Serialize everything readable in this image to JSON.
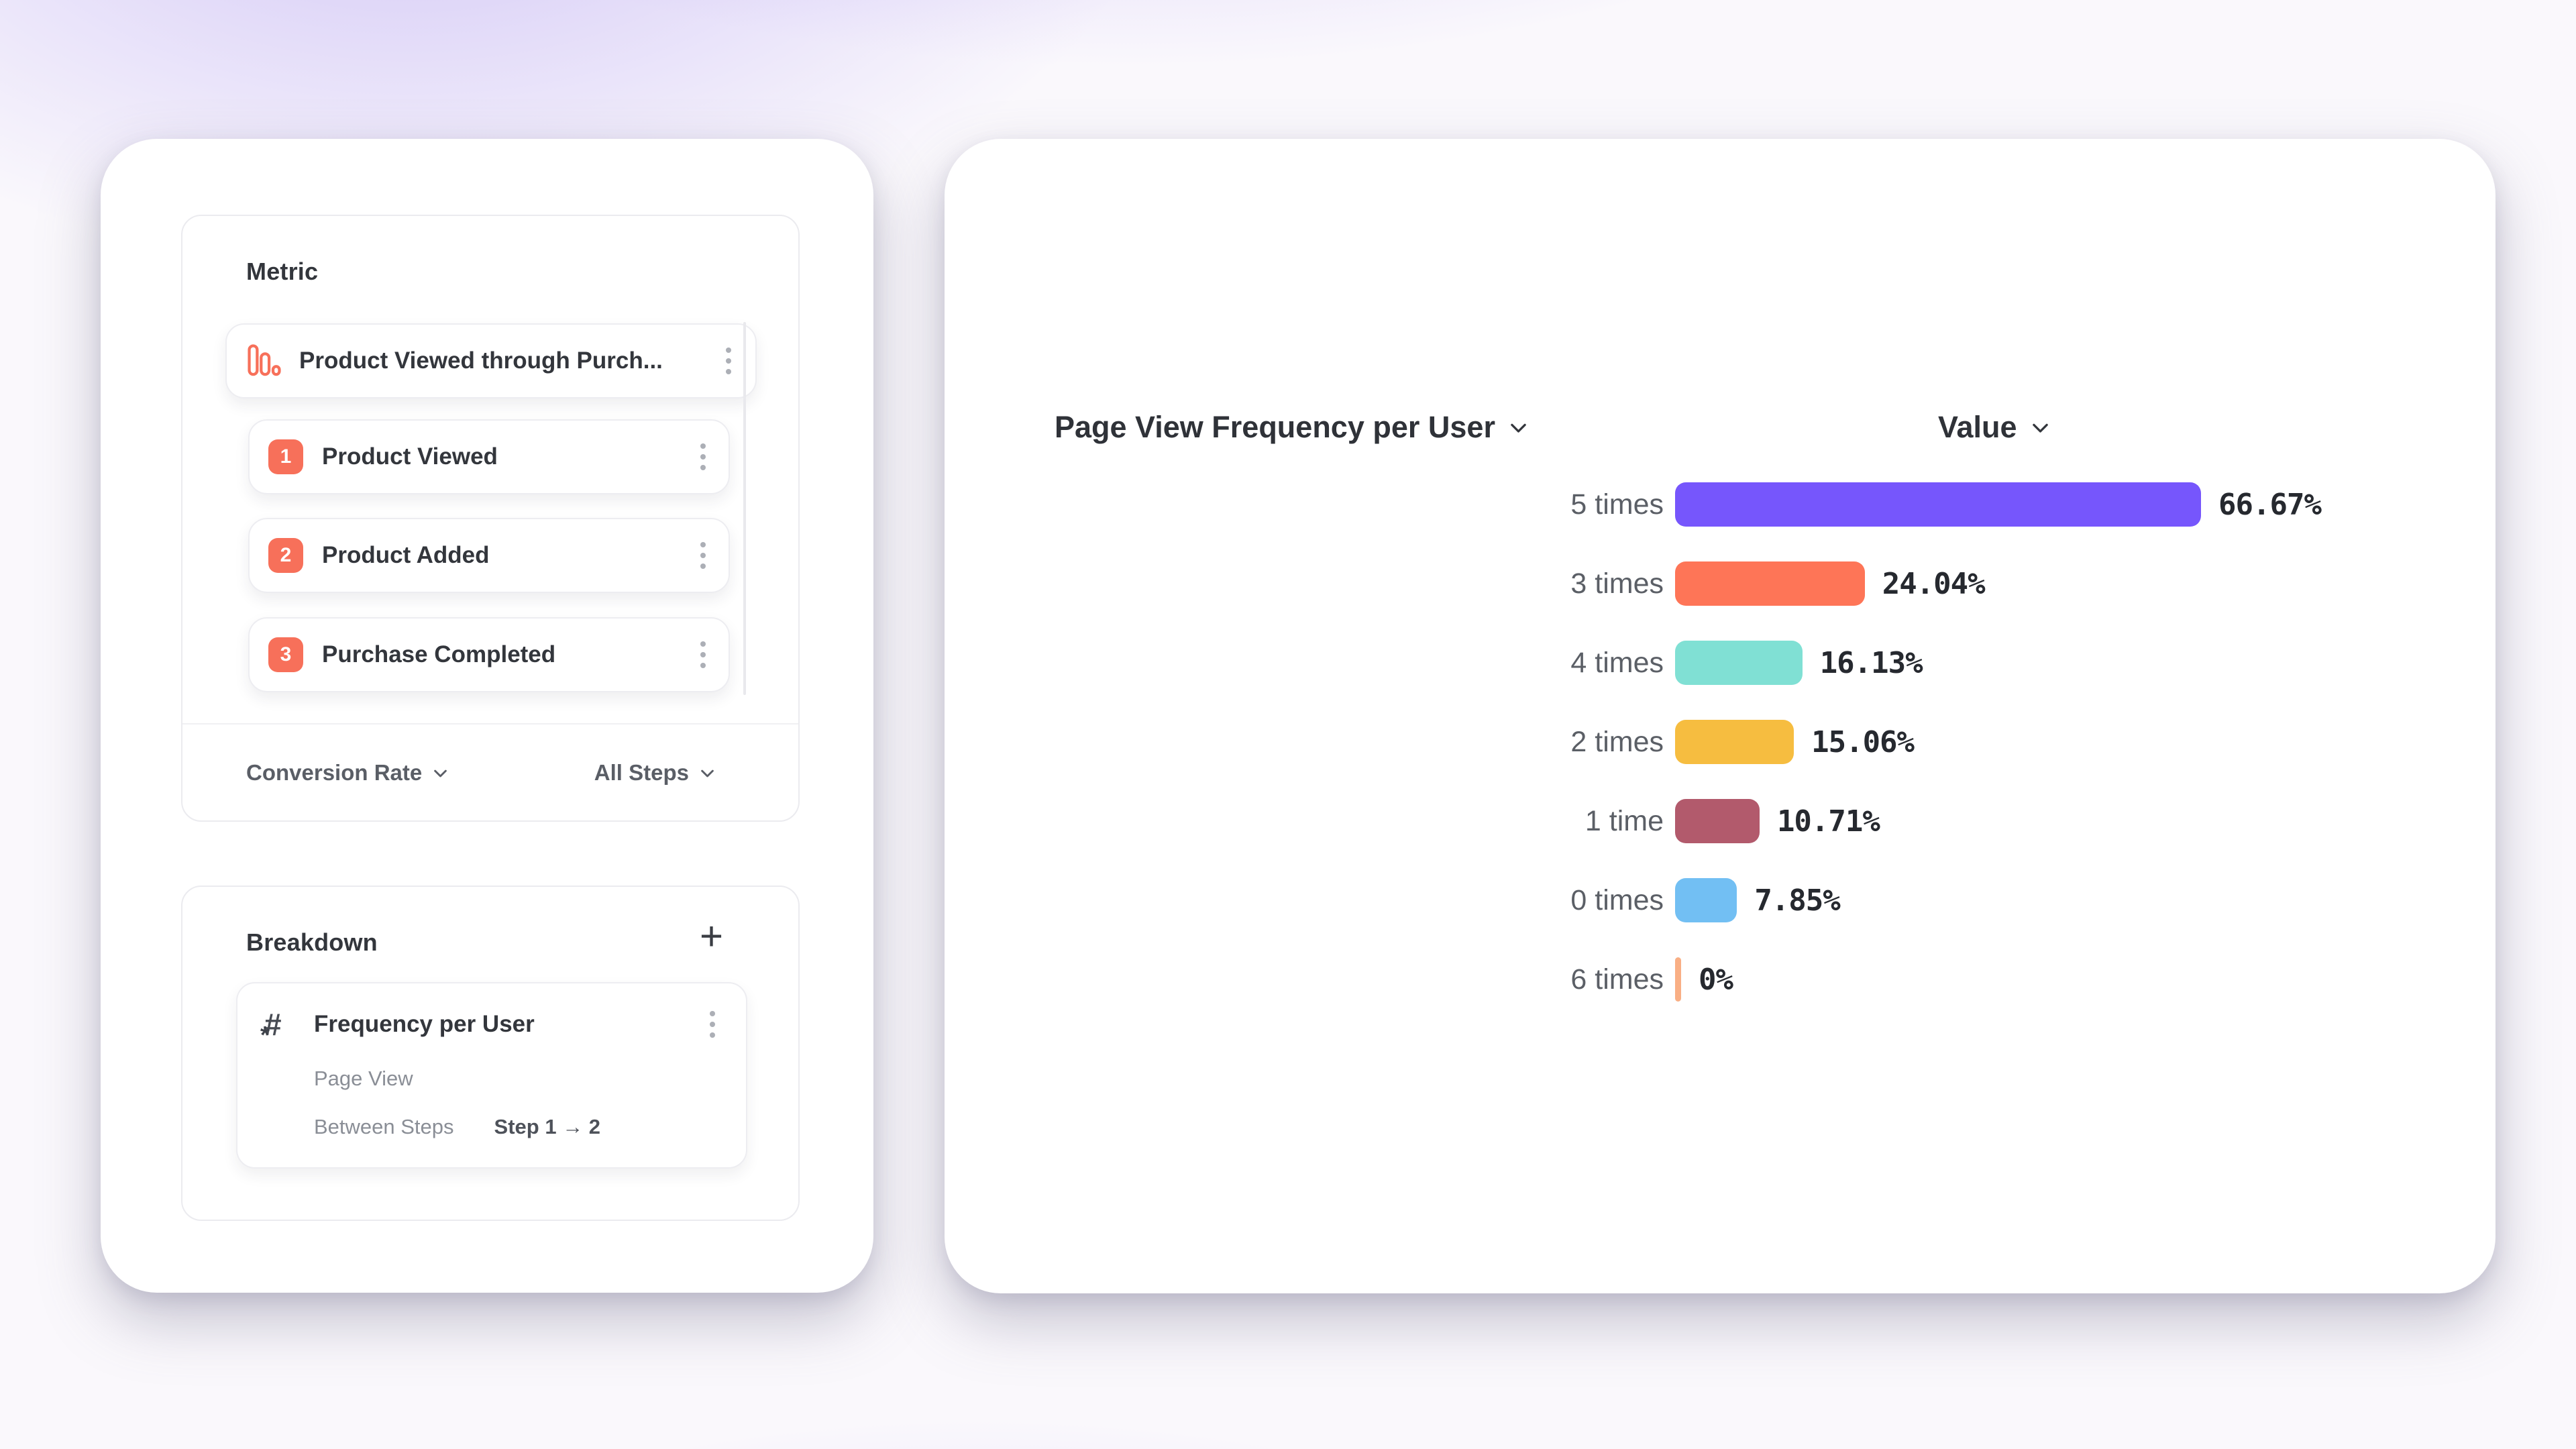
{
  "left_panel": {
    "metric_card": {
      "title": "Metric",
      "funnel": {
        "title": "Product Viewed through Purch...",
        "icon": "funnel-bars-icon"
      },
      "steps": [
        {
          "number": "1",
          "label": "Product Viewed"
        },
        {
          "number": "2",
          "label": "Product Added"
        },
        {
          "number": "3",
          "label": "Purchase Completed"
        }
      ],
      "footer": {
        "left_dropdown": "Conversion Rate",
        "right_dropdown": "All Steps"
      }
    },
    "breakdown_card": {
      "title": "Breakdown",
      "add_label": "+",
      "item": {
        "icon": "numeric-property-icon",
        "title": "Frequency per User",
        "event": "Page View",
        "between_label": "Between Steps",
        "step_range": "Step 1 → 2"
      }
    }
  },
  "chart_panel": {
    "x_dropdown": "Page View Frequency per User",
    "y_dropdown": "Value"
  },
  "chart_data": {
    "type": "bar",
    "orientation": "horizontal",
    "title": "Page View Frequency per User",
    "value_axis_label": "Value",
    "categories": [
      "5 times",
      "3 times",
      "4 times",
      "2 times",
      "1 time",
      "0 times",
      "6 times"
    ],
    "values": [
      66.67,
      24.04,
      16.13,
      15.06,
      10.71,
      7.85,
      0
    ],
    "value_labels": [
      "66.67%",
      "24.04%",
      "16.13%",
      "15.06%",
      "10.71%",
      "7.85%",
      "0%"
    ],
    "colors": [
      "#7656FC",
      "#FE7557",
      "#80E0D4",
      "#F6BD40",
      "#B25A6C",
      "#72BFF3",
      "#F9AF85"
    ],
    "xlim": [
      0,
      100
    ],
    "grid": false,
    "legend": false
  },
  "theme": {
    "accent_orange": "#F7705A",
    "text_dark": "#33363C",
    "text_gray": "#5A5E66",
    "border_gray": "#EBEBEF",
    "background_purple": "#8C6EEE"
  }
}
